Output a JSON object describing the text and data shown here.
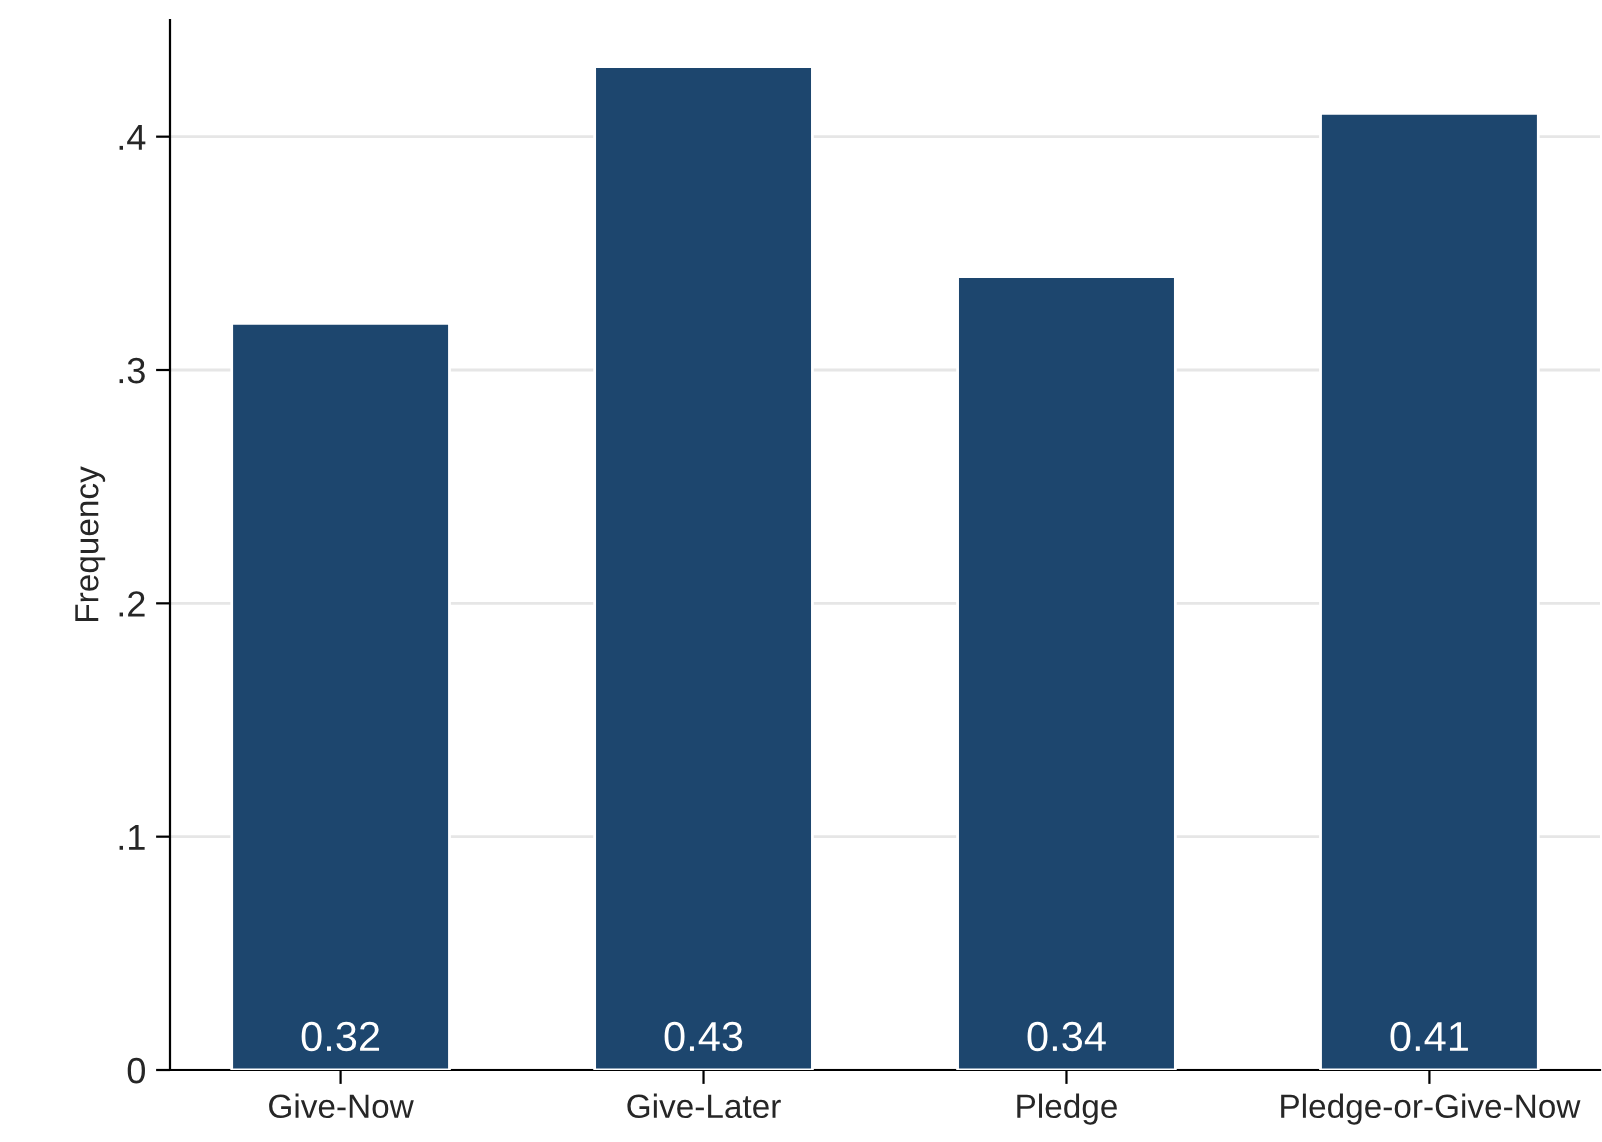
{
  "chart_data": {
    "type": "bar",
    "ylabel": "Frequency",
    "categories": [
      "Give-Now",
      "Give-Later",
      "Pledge",
      "Pledge-or-Give-Now"
    ],
    "values": [
      0.32,
      0.43,
      0.34,
      0.41
    ],
    "color": "#1d466e",
    "ylim": [
      0,
      0.45
    ],
    "yticks": [
      0,
      {
        "value": 0.1,
        "label": ".1"
      },
      {
        "value": 0.2,
        "label": ".2"
      },
      {
        "value": 0.3,
        "label": ".3"
      },
      {
        "value": 0.4,
        "label": ".4"
      }
    ],
    "grid": "y",
    "data_labels": true
  }
}
